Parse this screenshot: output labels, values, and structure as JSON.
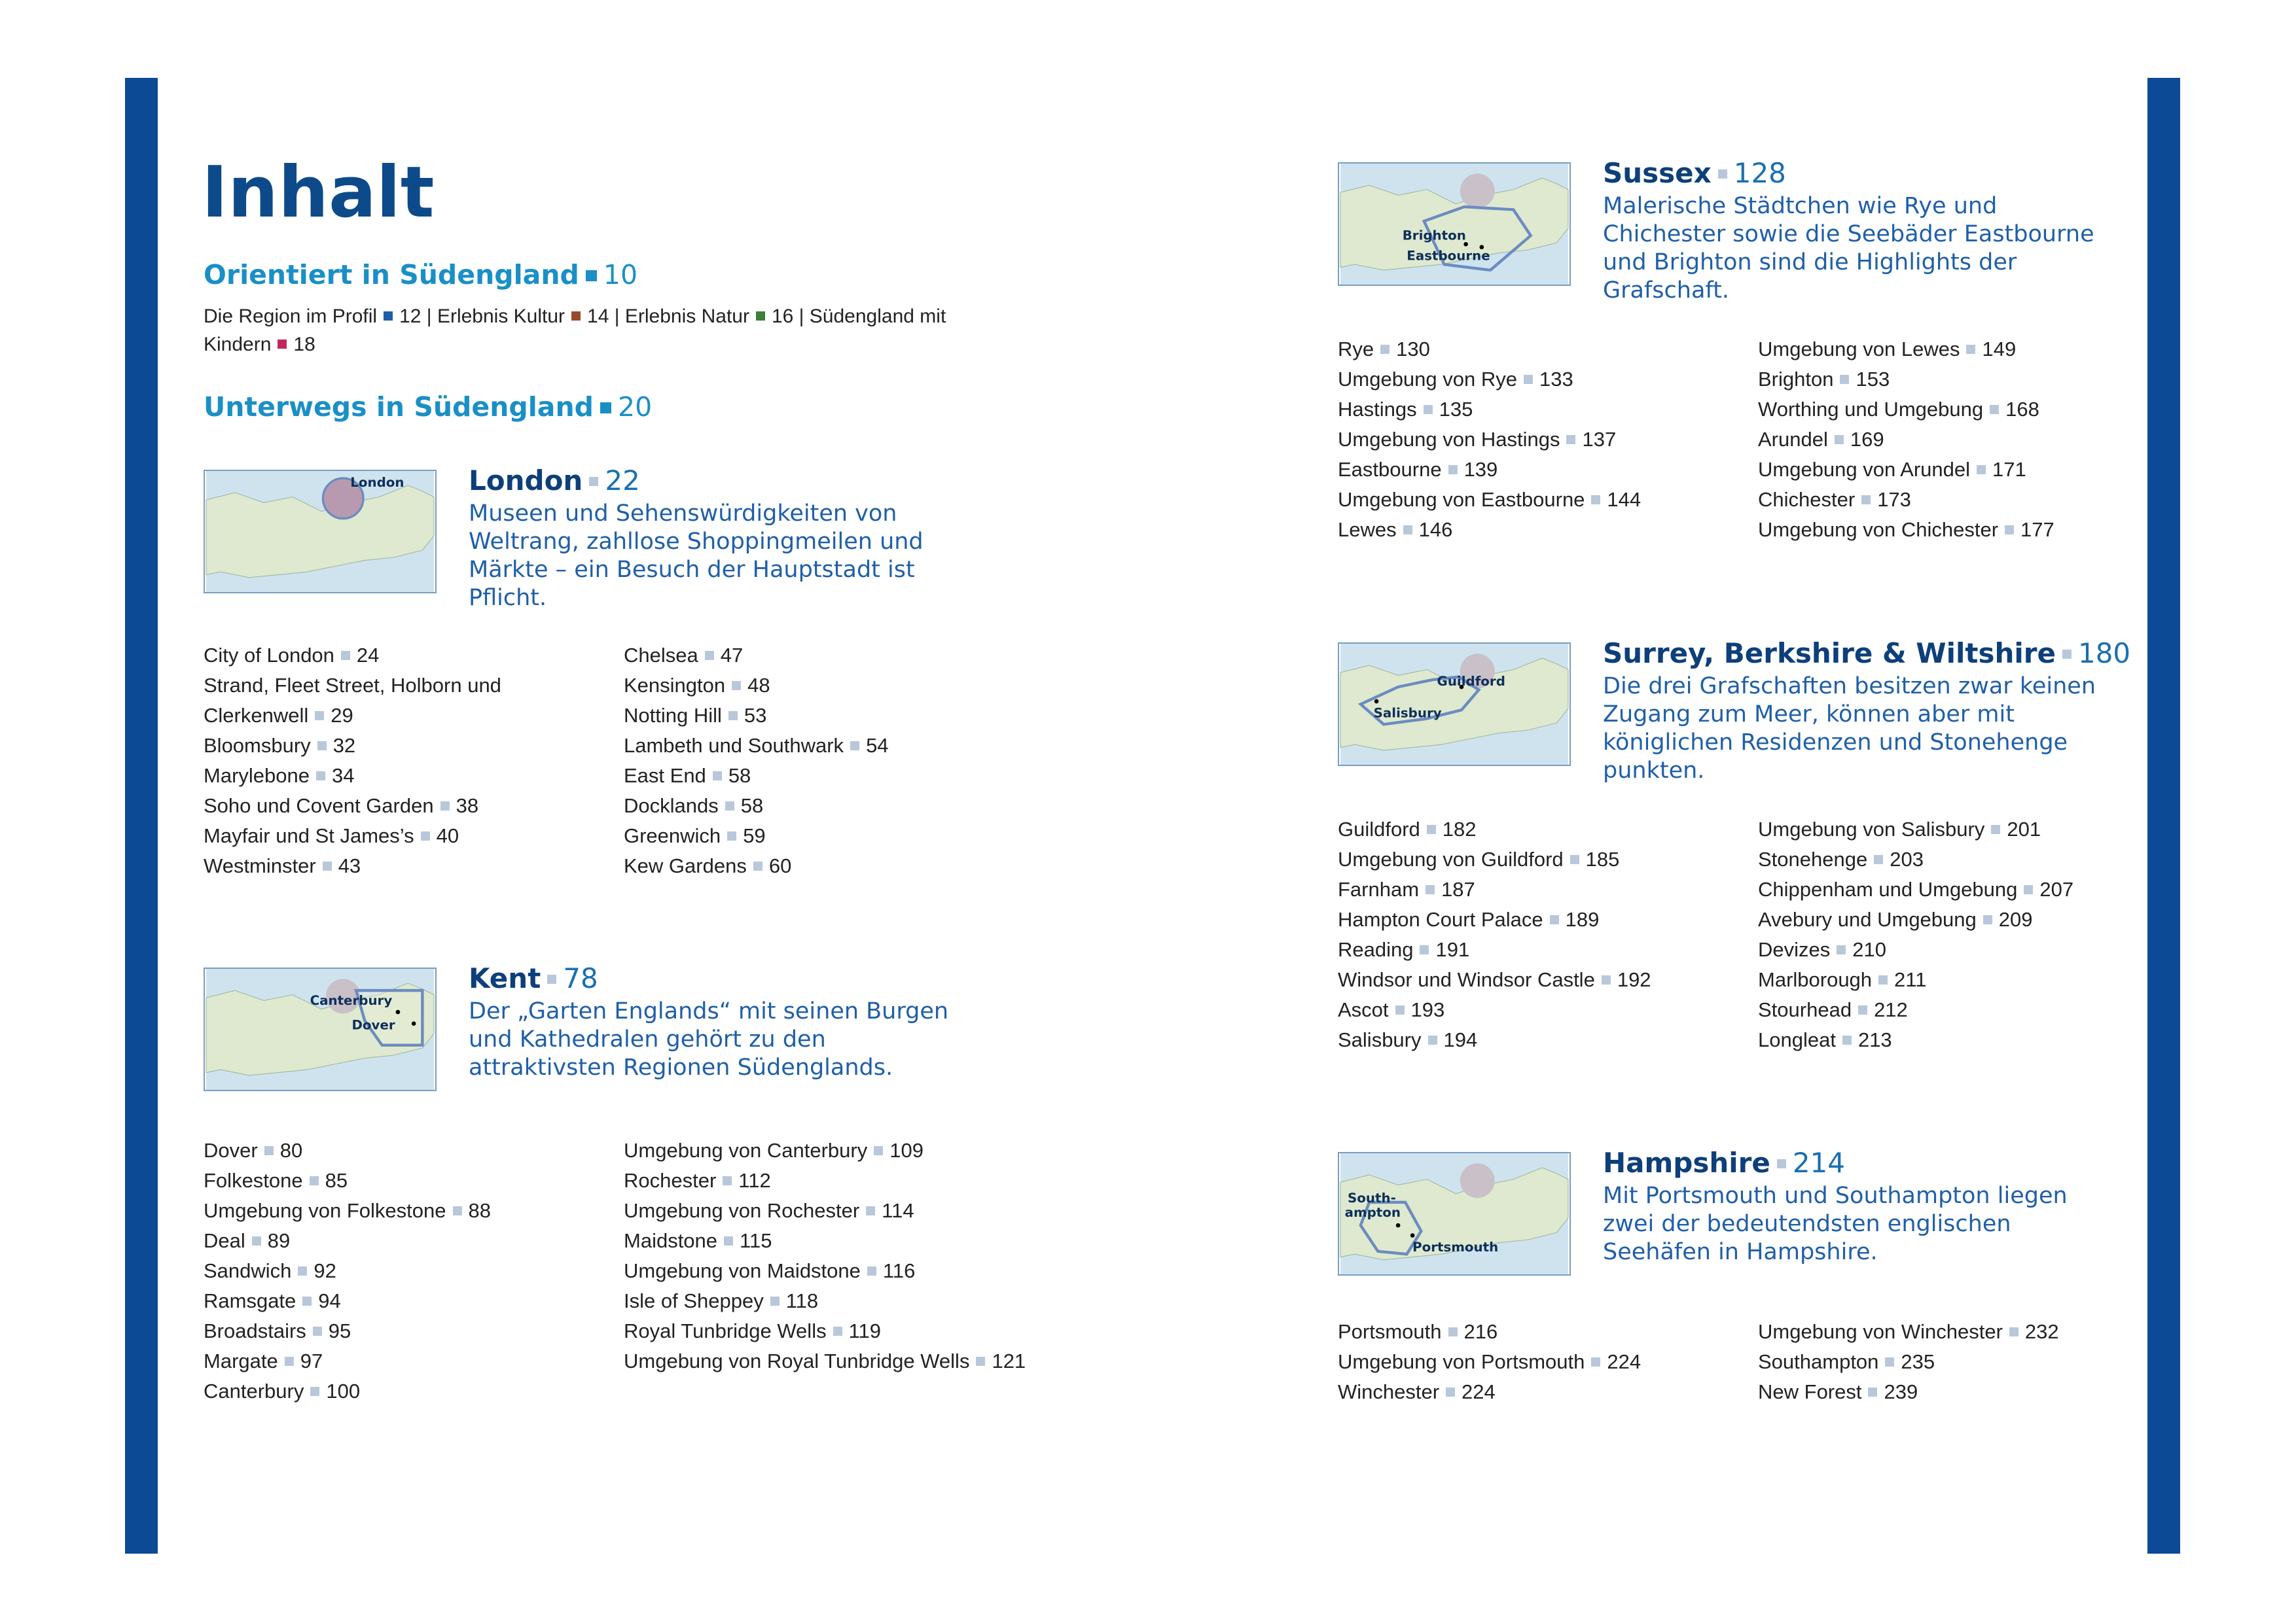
{
  "title": "Inhalt",
  "orientiert": {
    "title": "Orientiert in Südengland",
    "page": 10,
    "items": [
      {
        "name": "Die Region im Profil",
        "page": 12,
        "color": "#1f5fa8"
      },
      {
        "name": "Erlebnis Kultur",
        "page": 14,
        "color": "#9a4a2a"
      },
      {
        "name": "Erlebnis Natur",
        "page": 16,
        "color": "#3f7d3a"
      },
      {
        "name": "Südengland mit Kindern",
        "page": 18,
        "color": "#c0285a"
      }
    ]
  },
  "unterwegs": {
    "title": "Unterwegs in Südengland",
    "page": 20
  },
  "regions": [
    {
      "name": "London",
      "page": 22,
      "description": "Museen und Sehenswürdigkeiten von Weltrang, zahllose Shoppingmeilen und Märkte – ein Besuch der Hauptstadt ist Pflicht.",
      "map_labels": [
        "London"
      ],
      "columns": [
        [
          {
            "name": "City of London",
            "page": 24
          },
          {
            "name": "Strand, Fleet Street, Holborn und Clerkenwell",
            "page": 29
          },
          {
            "name": "Bloomsbury",
            "page": 32
          },
          {
            "name": "Marylebone",
            "page": 34
          },
          {
            "name": "Soho und Covent Garden",
            "page": 38
          },
          {
            "name": "Mayfair und St James’s",
            "page": 40
          },
          {
            "name": "Westminster",
            "page": 43
          }
        ],
        [
          {
            "name": "Chelsea",
            "page": 47
          },
          {
            "name": "Kensington",
            "page": 48
          },
          {
            "name": "Notting Hill",
            "page": 53
          },
          {
            "name": "Lambeth und Southwark",
            "page": 54
          },
          {
            "name": "East End",
            "page": 58
          },
          {
            "name": "Docklands",
            "page": 58
          },
          {
            "name": "Greenwich",
            "page": 59
          },
          {
            "name": "Kew Gardens",
            "page": 60
          }
        ]
      ]
    },
    {
      "name": "Kent",
      "page": 78,
      "description": "Der „Garten Englands“ mit seinen Burgen und Kathedralen gehört zu den attraktivsten Regionen Südenglands.",
      "map_labels": [
        "Canterbury",
        "Dover"
      ],
      "columns": [
        [
          {
            "name": "Dover",
            "page": 80
          },
          {
            "name": "Folkestone",
            "page": 85
          },
          {
            "name": "Umgebung von Folkestone",
            "page": 88
          },
          {
            "name": "Deal",
            "page": 89
          },
          {
            "name": "Sandwich",
            "page": 92
          },
          {
            "name": "Ramsgate",
            "page": 94
          },
          {
            "name": "Broadstairs",
            "page": 95
          },
          {
            "name": "Margate",
            "page": 97
          },
          {
            "name": "Canterbury",
            "page": 100
          }
        ],
        [
          {
            "name": "Umgebung von Canterbury",
            "page": 109
          },
          {
            "name": "Rochester",
            "page": 112
          },
          {
            "name": "Umgebung von Rochester",
            "page": 114
          },
          {
            "name": "Maidstone",
            "page": 115
          },
          {
            "name": "Umgebung von Maidstone",
            "page": 116
          },
          {
            "name": "Isle of Sheppey",
            "page": 118
          },
          {
            "name": "Royal Tunbridge Wells",
            "page": 119
          },
          {
            "name": "Umgebung von Royal Tunbridge Wells",
            "page": 121
          }
        ]
      ]
    },
    {
      "name": "Sussex",
      "page": 128,
      "description": "Malerische Städtchen wie Rye und Chichester sowie die Seebäder Eastbourne und Brighton sind die Highlights der Grafschaft.",
      "map_labels": [
        "Brighton",
        "Eastbourne"
      ],
      "columns": [
        [
          {
            "name": "Rye",
            "page": 130
          },
          {
            "name": "Umgebung von Rye",
            "page": 133
          },
          {
            "name": "Hastings",
            "page": 135
          },
          {
            "name": "Umgebung von Hastings",
            "page": 137
          },
          {
            "name": "Eastbourne",
            "page": 139
          },
          {
            "name": "Umgebung von Eastbourne",
            "page": 144
          },
          {
            "name": "Lewes",
            "page": 146
          }
        ],
        [
          {
            "name": "Umgebung von Lewes",
            "page": 149
          },
          {
            "name": "Brighton",
            "page": 153
          },
          {
            "name": "Worthing und Umgebung",
            "page": 168
          },
          {
            "name": "Arundel",
            "page": 169
          },
          {
            "name": "Umgebung von Arundel",
            "page": 171
          },
          {
            "name": "Chichester",
            "page": 173
          },
          {
            "name": "Umgebung von Chichester",
            "page": 177
          }
        ]
      ]
    },
    {
      "name": "Surrey, Berkshire & Wiltshire",
      "page": 180,
      "description": "Die drei Grafschaften besitzen zwar keinen Zugang zum Meer, können aber mit königlichen Residenzen und Stonehenge punkten.",
      "map_labels": [
        "Guildford",
        "Salisbury"
      ],
      "columns": [
        [
          {
            "name": "Guildford",
            "page": 182
          },
          {
            "name": "Umgebung von Guildford",
            "page": 185
          },
          {
            "name": "Farnham",
            "page": 187
          },
          {
            "name": "Hampton Court Palace",
            "page": 189
          },
          {
            "name": "Reading",
            "page": 191
          },
          {
            "name": "Windsor und Windsor Castle",
            "page": 192
          },
          {
            "name": "Ascot",
            "page": 193
          },
          {
            "name": "Salisbury",
            "page": 194
          }
        ],
        [
          {
            "name": "Umgebung von Salisbury",
            "page": 201
          },
          {
            "name": "Stonehenge",
            "page": 203
          },
          {
            "name": "Chippenham und Umgebung",
            "page": 207
          },
          {
            "name": "Avebury und Umgebung",
            "page": 209
          },
          {
            "name": "Devizes",
            "page": 210
          },
          {
            "name": "Marlborough",
            "page": 211
          },
          {
            "name": "Stourhead",
            "page": 212
          },
          {
            "name": "Longleat",
            "page": 213
          }
        ]
      ]
    },
    {
      "name": "Hampshire",
      "page": 214,
      "description": "Mit Portsmouth und Southampton liegen zwei der bedeutendsten englischen Seehäfen in Hampshire.",
      "map_labels": [
        "South-",
        "ampton",
        "Portsmouth"
      ],
      "columns": [
        [
          {
            "name": "Portsmouth",
            "page": 216
          },
          {
            "name": "Umgebung von Portsmouth",
            "page": 224
          },
          {
            "name": "Winchester",
            "page": 224
          }
        ],
        [
          {
            "name": "Umgebung von Winchester",
            "page": 232
          },
          {
            "name": "Southampton",
            "page": 235
          },
          {
            "name": "New Forest",
            "page": 239
          }
        ]
      ]
    }
  ]
}
